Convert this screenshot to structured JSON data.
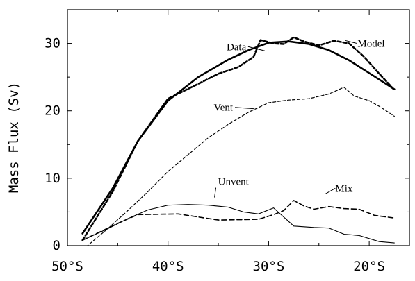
{
  "chart_data": {
    "type": "line",
    "title": "",
    "xlabel": "",
    "ylabel": "Mass Flux (Sv)",
    "xlim": [
      -50,
      -16
    ],
    "ylim": [
      0,
      35
    ],
    "x_direction": "increasing northward (50°S on left, 20°S on right)",
    "x_ticks": [
      -50,
      -40,
      -30,
      -20
    ],
    "x_tick_labels": [
      "50°S",
      "40°S",
      "30°S",
      "20°S"
    ],
    "y_ticks": [
      0,
      10,
      20,
      30
    ],
    "y_tick_labels": [
      "0",
      "10",
      "20",
      "30"
    ],
    "grid": false,
    "legend": "none (series labelled directly on chart)",
    "series": [
      {
        "name": "Data",
        "style": "thick solid",
        "color": "#000000",
        "x": [
          -48.5,
          -45.5,
          -43,
          -40,
          -37,
          -34,
          -32,
          -30,
          -28,
          -26,
          -24,
          -22,
          -20,
          -17.5
        ],
        "y": [
          1.8,
          8.5,
          15.5,
          21.5,
          25.0,
          27.6,
          29.0,
          30.1,
          30.3,
          29.9,
          29.0,
          27.5,
          25.6,
          23.2
        ]
      },
      {
        "name": "Model",
        "style": "thick dashed",
        "color": "#000000",
        "x": [
          -48.5,
          -45.5,
          -43,
          -40,
          -37,
          -35,
          -33,
          -31.5,
          -30.8,
          -29.5,
          -28.5,
          -27.5,
          -26.5,
          -25,
          -23.5,
          -22,
          -20.5,
          -19,
          -17.5
        ],
        "y": [
          0.8,
          8.0,
          15.5,
          21.8,
          24.0,
          25.5,
          26.5,
          28.0,
          30.5,
          30.0,
          29.9,
          30.9,
          30.3,
          29.7,
          30.4,
          30.0,
          28.0,
          25.5,
          23.1
        ]
      },
      {
        "name": "Vent",
        "style": "thin dashed",
        "color": "#000000",
        "x": [
          -50,
          -48,
          -46,
          -44,
          -42,
          -40,
          -38,
          -36,
          -34,
          -32,
          -30,
          -28,
          -26,
          -24,
          -22.5,
          -21.5,
          -20,
          -18.8,
          -17.5
        ],
        "y": [
          -2.5,
          0.0,
          2.5,
          5.2,
          8.0,
          11.0,
          13.5,
          16.0,
          18.0,
          19.8,
          21.2,
          21.6,
          21.8,
          22.5,
          23.5,
          22.2,
          21.5,
          20.5,
          19.2
        ]
      },
      {
        "name": "Unvent",
        "style": "thin solid",
        "color": "#000000",
        "x": [
          -48.5,
          -46,
          -44,
          -42,
          -40,
          -38,
          -36,
          -34,
          -32.5,
          -31,
          -29.5,
          -27.5,
          -25.5,
          -24,
          -22.5,
          -21,
          -19,
          -17.5
        ],
        "y": [
          0.8,
          2.5,
          4.0,
          5.3,
          6.0,
          6.1,
          6.0,
          5.7,
          5.0,
          4.7,
          5.6,
          2.9,
          2.7,
          2.6,
          1.7,
          1.5,
          0.6,
          0.4
        ]
      },
      {
        "name": "Mix",
        "style": "medium dashed",
        "color": "#000000",
        "x": [
          -48.5,
          -45,
          -43,
          -39,
          -35,
          -31,
          -29.5,
          -28.5,
          -27.5,
          -26.5,
          -25.5,
          -24,
          -22.5,
          -21,
          -19.5,
          -17.5
        ],
        "y": [
          0.8,
          3.3,
          4.6,
          4.7,
          3.8,
          3.9,
          4.6,
          5.2,
          6.7,
          5.9,
          5.4,
          5.8,
          5.5,
          5.4,
          4.5,
          4.1
        ]
      }
    ],
    "annotations": [
      {
        "text": "Data",
        "x": -33.2,
        "y": 29.0
      },
      {
        "text": "Model",
        "x": -19.8,
        "y": 29.5
      },
      {
        "text": "Vent",
        "x": -34.5,
        "y": 20.0
      },
      {
        "text": "Unvent",
        "x": -33.5,
        "y": 9.0
      },
      {
        "text": "Mix",
        "x": -22.5,
        "y": 8.0
      }
    ]
  }
}
